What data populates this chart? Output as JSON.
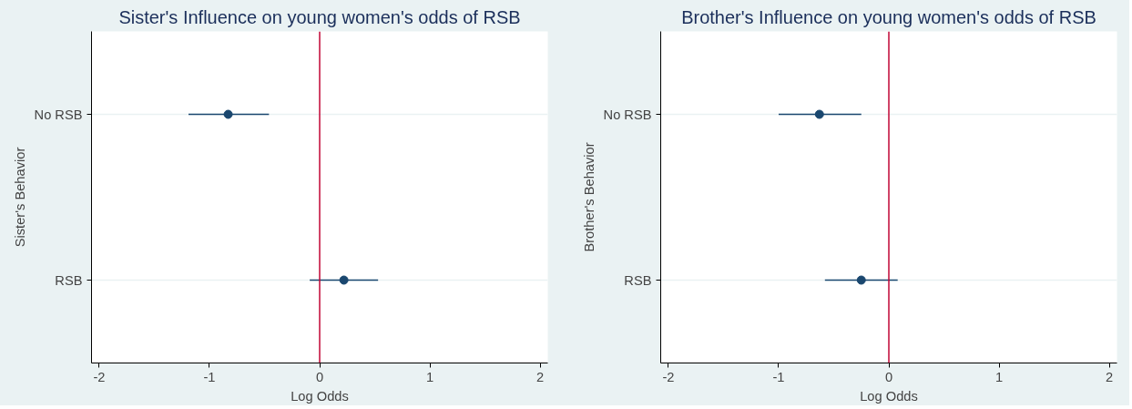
{
  "chart_data": [
    {
      "type": "scatter",
      "orientation": "horizontal",
      "title": "Sister's Influence on young women's odds of RSB",
      "xlabel": "Log Odds",
      "ylabel": "Sister's Behavior",
      "categories": [
        "No RSB",
        "RSB"
      ],
      "values": [
        -0.83,
        0.22
      ],
      "errors": [
        [
          -1.19,
          -0.46
        ],
        [
          -0.09,
          0.53
        ]
      ],
      "color": "#1a476f",
      "marker": "circle",
      "xlim": [
        -2.07,
        2.07
      ],
      "xticks": [
        -2,
        -1,
        0,
        1,
        2
      ],
      "grid": "y",
      "ref_lines": [
        {
          "axis": "x",
          "value": 0,
          "color": "#c10534"
        }
      ]
    },
    {
      "type": "scatter",
      "orientation": "horizontal",
      "title": "Brother's Influence on young women's odds of RSB",
      "xlabel": "Log Odds",
      "ylabel": "Brother's Behavior",
      "categories": [
        "No RSB",
        "RSB"
      ],
      "values": [
        -0.63,
        -0.25
      ],
      "errors": [
        [
          -1.0,
          -0.25
        ],
        [
          -0.58,
          0.08
        ]
      ],
      "color": "#1a476f",
      "marker": "circle",
      "xlim": [
        -2.07,
        2.07
      ],
      "xticks": [
        -2,
        -1,
        0,
        1,
        2
      ],
      "grid": "y",
      "ref_lines": [
        {
          "axis": "x",
          "value": 0,
          "color": "#c10534"
        }
      ]
    }
  ]
}
